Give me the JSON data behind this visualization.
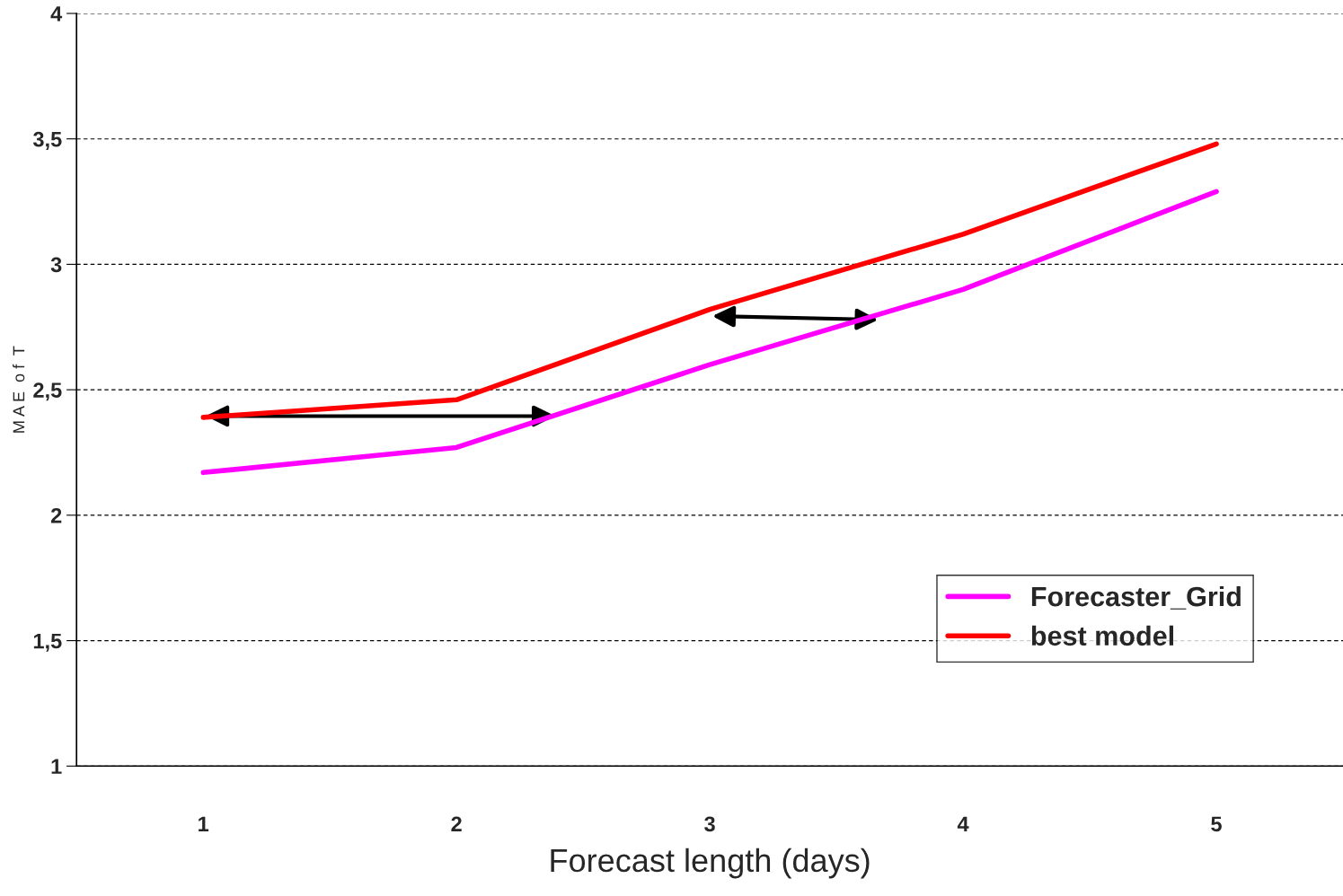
{
  "chart_data": {
    "type": "line",
    "xlabel": "Forecast length (days)",
    "ylabel": "M A E  o f  T",
    "categories": [
      "1",
      "2",
      "3",
      "4",
      "5"
    ],
    "series": [
      {
        "name": "Forecaster_Grid",
        "color": "#ff00ff",
        "values": [
          2.17,
          2.27,
          2.6,
          2.9,
          3.29
        ]
      },
      {
        "name": "best model",
        "color": "#ff0000",
        "values": [
          2.39,
          2.46,
          2.82,
          3.12,
          3.48
        ]
      }
    ],
    "ylim": [
      1,
      4
    ],
    "yticks": [
      1,
      {
        "value": 1.5,
        "label": "1,5"
      },
      2,
      {
        "value": 2.5,
        "label": "2,5"
      },
      3,
      {
        "value": 3.5,
        "label": "3,5"
      },
      4
    ],
    "grid": "y",
    "legend": "bottom right",
    "marker": "none",
    "line_style": "solid"
  }
}
